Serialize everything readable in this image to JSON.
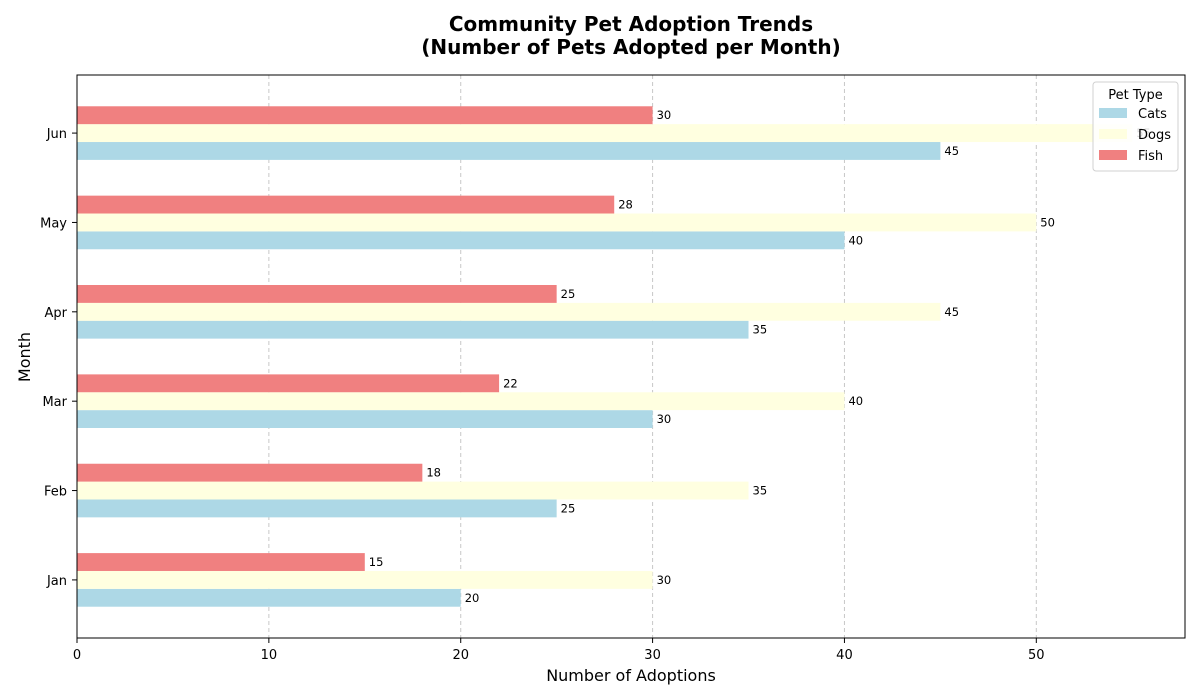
{
  "chart_data": {
    "type": "bar",
    "orientation": "horizontal",
    "title": "Community Pet Adoption Trends",
    "subtitle": "(Number of Pets Adopted per Month)",
    "xlabel": "Number of Adoptions",
    "ylabel": "Month",
    "categories": [
      "Jan",
      "Feb",
      "Mar",
      "Apr",
      "May",
      "Jun"
    ],
    "series": [
      {
        "name": "Cats",
        "color": "#add8e6",
        "values": [
          20,
          25,
          30,
          35,
          40,
          45
        ]
      },
      {
        "name": "Dogs",
        "color": "#ffffe0",
        "values": [
          30,
          35,
          40,
          45,
          50,
          55
        ]
      },
      {
        "name": "Fish",
        "color": "#f08080",
        "values": [
          15,
          18,
          22,
          25,
          28,
          30
        ]
      }
    ],
    "xlim": [
      0,
      57.75
    ],
    "xticks": [
      0,
      10,
      20,
      30,
      40,
      50
    ],
    "grid": "x-dashed",
    "legend": {
      "title": "Pet Type",
      "placement": "top-right"
    }
  }
}
